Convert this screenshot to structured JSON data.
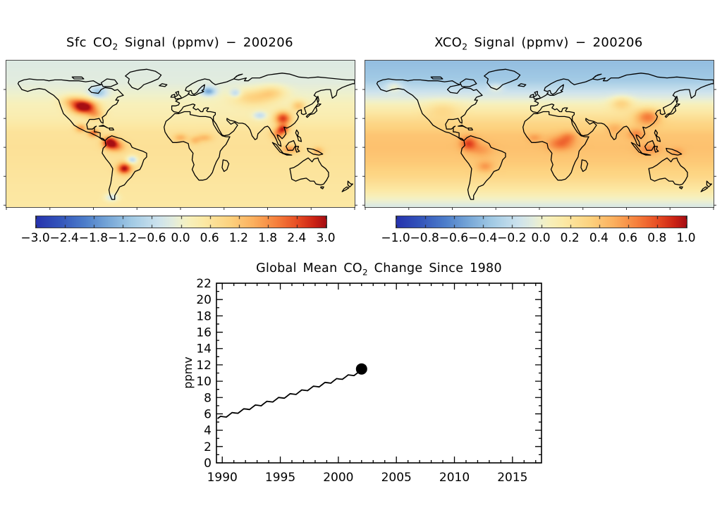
{
  "figure": {
    "background": "#ffffff",
    "text_color": "#000000",
    "map_frame_color": "#4a4a4a"
  },
  "palette": [
    [
      0.0,
      "#2733ae"
    ],
    [
      0.08,
      "#3354bb"
    ],
    [
      0.17,
      "#4e7fcb"
    ],
    [
      0.25,
      "#78a8d8"
    ],
    [
      0.33,
      "#a3cbe5"
    ],
    [
      0.42,
      "#cde3ee"
    ],
    [
      0.47,
      "#e2ecdf"
    ],
    [
      0.5,
      "#eff1cd"
    ],
    [
      0.53,
      "#f8f0bb"
    ],
    [
      0.58,
      "#fce9a5"
    ],
    [
      0.67,
      "#fdd27f"
    ],
    [
      0.75,
      "#fcb05e"
    ],
    [
      0.83,
      "#f67f3c"
    ],
    [
      0.9,
      "#e84e24"
    ],
    [
      0.96,
      "#cb2315"
    ],
    [
      1.0,
      "#a60e13"
    ]
  ],
  "chart_data": [
    {
      "type": "heatmap",
      "title_parts": [
        "Sfc CO",
        "2",
        " Signal (ppmv)  −  200206"
      ],
      "projection": "equirectangular",
      "lon_range": [
        -180,
        180
      ],
      "lat_range": [
        -62,
        90
      ],
      "value_range": [
        -3,
        3
      ],
      "colorbar_ticks": [
        "−3.0",
        "−2.4",
        "−1.8",
        "−1.2",
        "−0.6",
        "0.0",
        "0.6",
        "1.2",
        "1.8",
        "2.4",
        "3.0"
      ],
      "lat_profile": [
        [
          90,
          -0.25
        ],
        [
          68,
          -0.18
        ],
        [
          55,
          0.0
        ],
        [
          45,
          0.18
        ],
        [
          32,
          0.32
        ],
        [
          24,
          0.45
        ],
        [
          16,
          0.62
        ],
        [
          0,
          0.68
        ],
        [
          -20,
          0.62
        ],
        [
          -40,
          0.55
        ],
        [
          -62,
          0.5
        ]
      ],
      "hotspots": [
        [
          -100,
          42,
          9,
          5,
          3.2
        ],
        [
          -112,
          48,
          8,
          4,
          1.0
        ],
        [
          -88,
          34,
          6,
          4,
          1.0
        ],
        [
          -85,
          57,
          6,
          4,
          -1.1
        ],
        [
          -103,
          20,
          4,
          3,
          1.2
        ],
        [
          -90,
          15,
          4,
          3,
          1.5
        ],
        [
          -73,
          5,
          5,
          4,
          2.6
        ],
        [
          -66,
          1,
          6,
          4,
          1.2
        ],
        [
          -58,
          -22,
          5,
          4,
          2.4
        ],
        [
          -50,
          -13,
          4,
          3,
          -1.3
        ],
        [
          -71,
          -52,
          5,
          3,
          -0.9
        ],
        [
          29,
          58,
          5,
          3,
          -1.5
        ],
        [
          57,
          56,
          4,
          3,
          -0.9
        ],
        [
          0,
          10,
          5,
          3,
          0.8
        ],
        [
          25,
          10,
          6,
          3,
          0.7
        ],
        [
          15,
          7,
          4,
          3,
          0.6
        ],
        [
          82,
          33,
          5,
          3,
          -0.9
        ],
        [
          75,
          52,
          15,
          6,
          0.9
        ],
        [
          95,
          57,
          10,
          5,
          0.8
        ],
        [
          106,
          30,
          6,
          5,
          2.2
        ],
        [
          106,
          19,
          4,
          3,
          1.8
        ],
        [
          122,
          43,
          5,
          4,
          1.0
        ],
        [
          101,
          14,
          5,
          4,
          1.2
        ],
        [
          113,
          -2,
          6,
          3,
          1.1
        ],
        [
          142,
          -4,
          4,
          3,
          0.8
        ]
      ]
    },
    {
      "type": "heatmap",
      "title_parts": [
        "XCO",
        "2",
        " Signal (ppmv)  −  200206"
      ],
      "projection": "equirectangular",
      "lon_range": [
        -180,
        180
      ],
      "lat_range": [
        -62,
        90
      ],
      "value_range": [
        -1,
        1
      ],
      "colorbar_ticks": [
        "−1.0",
        "−0.8",
        "−0.6",
        "−0.4",
        "−0.2",
        "0.0",
        "0.2",
        "0.4",
        "0.6",
        "0.8",
        "1.0"
      ],
      "lat_profile": [
        [
          90,
          -0.4
        ],
        [
          70,
          -0.34
        ],
        [
          55,
          -0.12
        ],
        [
          45,
          0.05
        ],
        [
          35,
          0.18
        ],
        [
          25,
          0.3
        ],
        [
          12,
          0.4
        ],
        [
          0,
          0.42
        ],
        [
          -15,
          0.38
        ],
        [
          -30,
          0.3
        ],
        [
          -45,
          0.15
        ],
        [
          -55,
          0.0
        ],
        [
          -62,
          -0.1
        ]
      ],
      "hotspots": [
        [
          -150,
          63,
          6,
          4,
          0.22
        ],
        [
          -45,
          62,
          5,
          3,
          0.18
        ],
        [
          -100,
          40,
          12,
          6,
          0.15
        ],
        [
          -73,
          4,
          6,
          5,
          0.42
        ],
        [
          -60,
          -3,
          8,
          5,
          0.15
        ],
        [
          -56,
          -20,
          6,
          4,
          0.22
        ],
        [
          -5,
          10,
          5,
          3,
          0.15
        ],
        [
          22,
          4,
          9,
          5,
          0.3
        ],
        [
          30,
          11,
          6,
          4,
          0.2
        ],
        [
          85,
          46,
          8,
          5,
          0.28
        ],
        [
          112,
          32,
          9,
          6,
          0.45
        ],
        [
          100,
          14,
          6,
          4,
          0.25
        ],
        [
          78,
          20,
          6,
          4,
          0.15
        ],
        [
          113,
          -2,
          8,
          4,
          0.2
        ],
        [
          142,
          -5,
          5,
          3,
          0.15
        ]
      ]
    },
    {
      "type": "line",
      "title_parts": [
        "Global Mean CO",
        "2",
        " Change Since 1980"
      ],
      "ylabel": "ppmv",
      "xlim": [
        1989.5,
        2017.5
      ],
      "ylim": [
        0,
        22
      ],
      "xticks": [
        1990,
        1995,
        2000,
        2005,
        2010,
        2015
      ],
      "xtick_labels": [
        "1990",
        "1995",
        "2000",
        "2005",
        "2010",
        "2015"
      ],
      "yticks": [
        0,
        2,
        4,
        6,
        8,
        10,
        12,
        14,
        16,
        18,
        20,
        22
      ],
      "ytick_labels": [
        "0",
        "2",
        "4",
        "6",
        "8",
        "10",
        "12",
        "14",
        "16",
        "18",
        "20",
        "22"
      ],
      "x": [
        1989.6,
        1989.85,
        1990.1,
        1990.35,
        1990.6,
        1990.85,
        1991.1,
        1991.35,
        1991.6,
        1991.85,
        1992.1,
        1992.35,
        1992.6,
        1992.85,
        1993.1,
        1993.35,
        1993.6,
        1993.85,
        1994.1,
        1994.35,
        1994.6,
        1994.85,
        1995.1,
        1995.35,
        1995.6,
        1995.85,
        1996.1,
        1996.35,
        1996.6,
        1996.85,
        1997.1,
        1997.35,
        1997.6,
        1997.85,
        1998.1,
        1998.35,
        1998.6,
        1998.85,
        1999.1,
        1999.35,
        1999.6,
        1999.85,
        2000.1,
        2000.35,
        2000.6,
        2000.85,
        2001.1,
        2001.35,
        2001.6,
        2001.85,
        2002.0
      ],
      "y": [
        5.42,
        5.7,
        5.65,
        5.61,
        5.88,
        6.16,
        6.11,
        6.07,
        6.34,
        6.62,
        6.58,
        6.53,
        6.81,
        7.08,
        7.04,
        6.99,
        7.27,
        7.54,
        7.5,
        7.45,
        7.73,
        8.01,
        7.96,
        7.92,
        8.19,
        8.47,
        8.42,
        8.38,
        8.65,
        8.93,
        8.89,
        8.84,
        9.12,
        9.39,
        9.35,
        9.3,
        9.58,
        9.85,
        9.81,
        9.76,
        10.04,
        10.32,
        10.27,
        10.23,
        10.5,
        10.78,
        10.73,
        10.69,
        10.96,
        11.24,
        11.45
      ],
      "marker": {
        "x": 2002.0,
        "y": 11.5
      },
      "grid": false,
      "line_color": "#000000"
    }
  ]
}
